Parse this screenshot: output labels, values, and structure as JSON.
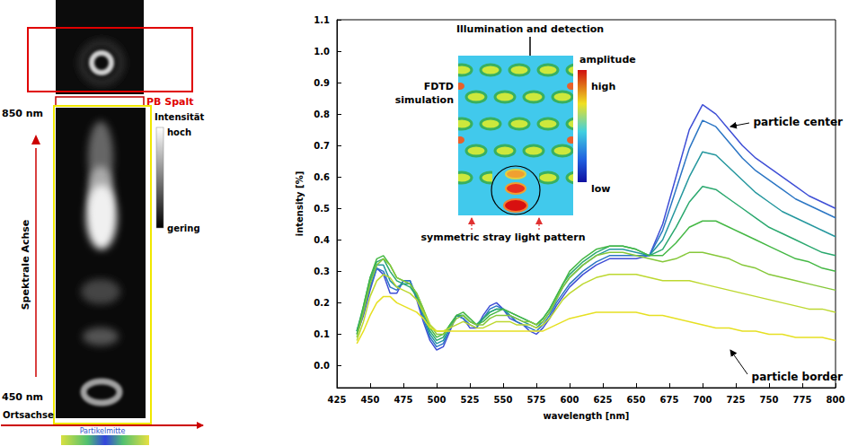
{
  "left_panel": {
    "slit_label": "PB Spalt",
    "top_wavelength": "850 nm",
    "bottom_wavelength": "450 nm",
    "colorbar_title": "Intensität",
    "colorbar_high": "hoch",
    "colorbar_low": "gering",
    "spectral_axis": "Spektrale Achse",
    "spatial_axis": "Ortsachse",
    "center_label": "Partikelmitte"
  },
  "inset": {
    "title": "Illumination and detection",
    "label": "FDTD simulation",
    "colorbar_title": "amplitude",
    "colorbar_high": "high",
    "colorbar_low": "low",
    "caption": "symmetric stray light pattern"
  },
  "chart_data": {
    "type": "line",
    "x_label": "wavelength [nm]",
    "y_label": "intensity [%]",
    "annotations": [
      "particle center",
      "particle border"
    ],
    "grid": false,
    "xlim": [
      425,
      800
    ],
    "xticks": [
      425,
      450,
      475,
      500,
      525,
      550,
      575,
      600,
      625,
      650,
      675,
      700,
      725,
      750,
      775,
      800
    ],
    "ylim": [
      -0.07,
      1.1
    ],
    "yticks": [
      {
        "value": 0,
        "label": "0.0"
      },
      0.1,
      0.2,
      0.3,
      0.4,
      0.5,
      0.6,
      0.7,
      0.8,
      0.9,
      {
        "value": 1,
        "label": "1.0"
      },
      1.1
    ],
    "x": [
      440,
      445,
      450,
      455,
      460,
      465,
      470,
      475,
      480,
      485,
      490,
      495,
      500,
      505,
      510,
      515,
      520,
      525,
      530,
      535,
      540,
      545,
      550,
      555,
      560,
      565,
      570,
      575,
      580,
      585,
      590,
      595,
      600,
      610,
      620,
      630,
      640,
      650,
      660,
      670,
      680,
      690,
      700,
      710,
      720,
      730,
      740,
      750,
      760,
      770,
      780,
      790,
      800
    ],
    "series": [
      {
        "color": "#3f4fd6",
        "values": [
          0.1,
          0.16,
          0.24,
          0.31,
          0.29,
          0.23,
          0.23,
          0.27,
          0.27,
          0.21,
          0.14,
          0.08,
          0.05,
          0.06,
          0.11,
          0.16,
          0.15,
          0.12,
          0.12,
          0.16,
          0.19,
          0.2,
          0.18,
          0.15,
          0.14,
          0.13,
          0.11,
          0.1,
          0.12,
          0.15,
          0.19,
          0.22,
          0.25,
          0.29,
          0.32,
          0.34,
          0.34,
          0.34,
          0.35,
          0.45,
          0.6,
          0.75,
          0.83,
          0.8,
          0.75,
          0.7,
          0.66,
          0.63,
          0.6,
          0.57,
          0.54,
          0.52,
          0.5
        ]
      },
      {
        "color": "#2c76c4",
        "values": [
          0.11,
          0.17,
          0.25,
          0.31,
          0.3,
          0.25,
          0.24,
          0.27,
          0.27,
          0.22,
          0.15,
          0.09,
          0.06,
          0.07,
          0.12,
          0.16,
          0.15,
          0.13,
          0.12,
          0.15,
          0.18,
          0.19,
          0.18,
          0.16,
          0.14,
          0.13,
          0.12,
          0.11,
          0.13,
          0.16,
          0.2,
          0.23,
          0.26,
          0.3,
          0.33,
          0.35,
          0.35,
          0.35,
          0.35,
          0.43,
          0.56,
          0.69,
          0.78,
          0.76,
          0.71,
          0.66,
          0.62,
          0.59,
          0.56,
          0.53,
          0.51,
          0.49,
          0.47
        ]
      },
      {
        "color": "#25979e",
        "values": [
          0.11,
          0.18,
          0.27,
          0.32,
          0.32,
          0.27,
          0.25,
          0.26,
          0.26,
          0.22,
          0.16,
          0.1,
          0.07,
          0.08,
          0.12,
          0.16,
          0.16,
          0.14,
          0.13,
          0.15,
          0.17,
          0.18,
          0.18,
          0.16,
          0.15,
          0.14,
          0.13,
          0.12,
          0.14,
          0.17,
          0.21,
          0.25,
          0.28,
          0.32,
          0.35,
          0.37,
          0.37,
          0.36,
          0.35,
          0.4,
          0.5,
          0.6,
          0.68,
          0.67,
          0.63,
          0.59,
          0.55,
          0.52,
          0.49,
          0.47,
          0.45,
          0.43,
          0.41
        ]
      },
      {
        "color": "#2aa86e",
        "values": [
          0.11,
          0.19,
          0.28,
          0.33,
          0.34,
          0.3,
          0.27,
          0.26,
          0.25,
          0.22,
          0.17,
          0.11,
          0.08,
          0.09,
          0.13,
          0.16,
          0.16,
          0.14,
          0.13,
          0.15,
          0.17,
          0.18,
          0.18,
          0.17,
          0.16,
          0.15,
          0.14,
          0.13,
          0.15,
          0.18,
          0.22,
          0.26,
          0.29,
          0.33,
          0.36,
          0.38,
          0.38,
          0.37,
          0.35,
          0.37,
          0.44,
          0.52,
          0.57,
          0.56,
          0.53,
          0.5,
          0.47,
          0.44,
          0.42,
          0.4,
          0.38,
          0.36,
          0.35
        ]
      },
      {
        "color": "#45b845",
        "values": [
          0.1,
          0.19,
          0.28,
          0.34,
          0.35,
          0.32,
          0.28,
          0.27,
          0.26,
          0.23,
          0.18,
          0.12,
          0.09,
          0.1,
          0.13,
          0.16,
          0.17,
          0.15,
          0.13,
          0.14,
          0.16,
          0.17,
          0.18,
          0.17,
          0.16,
          0.15,
          0.14,
          0.13,
          0.15,
          0.18,
          0.22,
          0.26,
          0.3,
          0.34,
          0.37,
          0.38,
          0.38,
          0.37,
          0.35,
          0.35,
          0.39,
          0.44,
          0.46,
          0.46,
          0.44,
          0.42,
          0.4,
          0.38,
          0.36,
          0.34,
          0.33,
          0.31,
          0.3
        ]
      },
      {
        "color": "#86c83a",
        "values": [
          0.09,
          0.17,
          0.26,
          0.32,
          0.34,
          0.32,
          0.28,
          0.27,
          0.26,
          0.23,
          0.18,
          0.13,
          0.1,
          0.1,
          0.12,
          0.15,
          0.16,
          0.14,
          0.13,
          0.13,
          0.15,
          0.16,
          0.16,
          0.16,
          0.15,
          0.14,
          0.14,
          0.13,
          0.14,
          0.17,
          0.21,
          0.25,
          0.28,
          0.32,
          0.35,
          0.36,
          0.36,
          0.35,
          0.34,
          0.33,
          0.34,
          0.36,
          0.36,
          0.35,
          0.34,
          0.32,
          0.31,
          0.29,
          0.28,
          0.27,
          0.26,
          0.25,
          0.24
        ]
      },
      {
        "color": "#bdd830",
        "values": [
          0.08,
          0.14,
          0.22,
          0.27,
          0.29,
          0.28,
          0.25,
          0.24,
          0.23,
          0.21,
          0.17,
          0.13,
          0.11,
          0.11,
          0.12,
          0.13,
          0.14,
          0.13,
          0.12,
          0.12,
          0.13,
          0.14,
          0.14,
          0.14,
          0.13,
          0.13,
          0.13,
          0.12,
          0.13,
          0.15,
          0.18,
          0.21,
          0.23,
          0.26,
          0.28,
          0.29,
          0.29,
          0.29,
          0.28,
          0.27,
          0.27,
          0.27,
          0.26,
          0.25,
          0.24,
          0.23,
          0.22,
          0.21,
          0.2,
          0.19,
          0.18,
          0.18,
          0.17
        ]
      },
      {
        "color": "#e6e022",
        "values": [
          0.07,
          0.11,
          0.16,
          0.2,
          0.22,
          0.22,
          0.2,
          0.19,
          0.18,
          0.17,
          0.15,
          0.12,
          0.11,
          0.11,
          0.11,
          0.11,
          0.11,
          0.11,
          0.11,
          0.11,
          0.11,
          0.11,
          0.11,
          0.11,
          0.11,
          0.11,
          0.11,
          0.11,
          0.11,
          0.12,
          0.13,
          0.14,
          0.15,
          0.16,
          0.17,
          0.17,
          0.17,
          0.17,
          0.16,
          0.16,
          0.15,
          0.14,
          0.13,
          0.12,
          0.12,
          0.11,
          0.11,
          0.1,
          0.1,
          0.09,
          0.09,
          0.09,
          0.08
        ]
      }
    ]
  }
}
